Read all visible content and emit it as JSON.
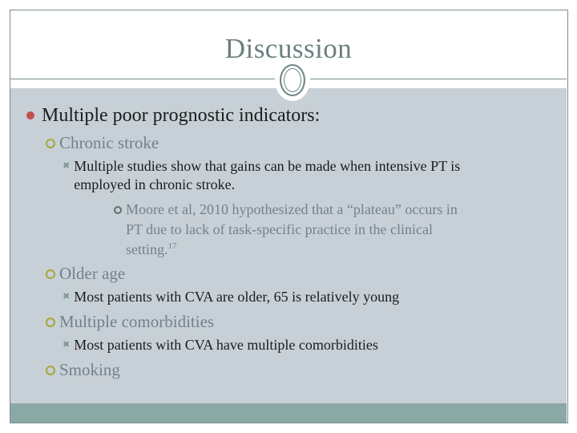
{
  "slide": {
    "title": "Discussion",
    "bullets": [
      {
        "level": 1,
        "text": "Multiple poor prognostic indicators:"
      },
      {
        "level": 2,
        "text": "Chronic stroke"
      },
      {
        "level": 3,
        "lines": [
          "Multiple studies show that gains can be made when intensive PT is",
          "employed in chronic stroke."
        ]
      },
      {
        "level": 4,
        "lines": [
          "Moore et al, 2010 hypothesized that a “plateau” occurs in",
          "PT due to lack of task-specific practice in the clinical",
          "setting."
        ],
        "superscript": "17"
      },
      {
        "level": 2,
        "text": "Older age"
      },
      {
        "level": 3,
        "text": "Most patients with CVA are older, 65 is relatively young"
      },
      {
        "level": 2,
        "text": "Multiple comorbidities"
      },
      {
        "level": 3,
        "text": "Most patients with CVA have multiple comorbidities"
      },
      {
        "level": 2,
        "text": "Smoking"
      }
    ]
  },
  "colors": {
    "level1_bullet": "#c0504d",
    "level2_bullet": "#a4a63e",
    "level3_bullet": "#7f9595",
    "level4_bullet": "#5f6e6e",
    "title_text": "#6d7f7f",
    "secondary_text": "#75808f",
    "body_text": "#1c1c1c",
    "content_background": "#c7d0d6",
    "footer_band": "#8aa8a4",
    "frame_border": "#7e8e8e"
  }
}
